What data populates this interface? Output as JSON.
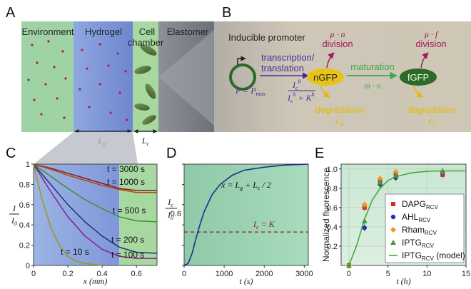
{
  "panel_a": {
    "letter": "A",
    "labels": {
      "environment": "Environment",
      "hydrogel": "Hydrogel",
      "cell": "Cell",
      "chamber": "chamber",
      "elastomer": "Elastomer"
    },
    "dim_lg": "L",
    "dim_lg_sub": "g",
    "dim_lc": "L",
    "dim_lc_sub": "c"
  },
  "panel_b": {
    "letter": "B",
    "inducible_promoter": "Inducible promoter",
    "transcription": "transcription/",
    "translation": "translation",
    "nGFP": "nGFP",
    "fGFP": "fGFP",
    "maturation": "maturation",
    "maturation_rate": "m · n",
    "division_n_rate": "μ · n",
    "division_f_rate": "μ · f",
    "division": "division",
    "degradation": "degradation",
    "deg_n": "C",
    "deg_n_sub": "n",
    "deg_f": "C",
    "deg_f_sub": "f",
    "eq_lhs": "P = P",
    "eq_lhs_sub": "max",
    "eq_num": "I",
    "eq_num_sub": "c",
    "eq_num_sup": "h",
    "eq_den": "I",
    "eq_den_sub": "c",
    "eq_den_sup": "h",
    "eq_den_tail": " + K",
    "eq_den_tail_sup": "h"
  },
  "chart_data": [
    {
      "panel": "C",
      "type": "line",
      "xlabel": "x (mm)",
      "ylabel": "I / I0",
      "xlim": [
        0,
        0.72
      ],
      "ylim": [
        0,
        1.0
      ],
      "xticks": [
        0,
        0.2,
        0.4,
        0.6
      ],
      "yticks": [
        0,
        0.2,
        0.4,
        0.6,
        0.8,
        1
      ],
      "series": [
        {
          "name": "t = 3000 s",
          "color": "#8b1a1a",
          "x": [
            0,
            0.1,
            0.2,
            0.3,
            0.4,
            0.5,
            0.6,
            0.72
          ],
          "y": [
            1,
            0.96,
            0.91,
            0.86,
            0.81,
            0.76,
            0.74,
            0.74
          ]
        },
        {
          "name": "t = 1000 s",
          "color": "#b04a12",
          "x": [
            0,
            0.1,
            0.2,
            0.3,
            0.4,
            0.5,
            0.6,
            0.72
          ],
          "y": [
            1,
            0.95,
            0.89,
            0.84,
            0.79,
            0.75,
            0.72,
            0.72
          ]
        },
        {
          "name": "t = 500 s",
          "color": "#3f8f2e",
          "x": [
            0,
            0.1,
            0.2,
            0.3,
            0.4,
            0.5,
            0.6,
            0.72
          ],
          "y": [
            1,
            0.88,
            0.76,
            0.65,
            0.56,
            0.48,
            0.44,
            0.43
          ]
        },
        {
          "name": "t = 200 s",
          "color": "#23307a",
          "x": [
            0,
            0.1,
            0.2,
            0.3,
            0.4,
            0.5,
            0.6,
            0.72
          ],
          "y": [
            1,
            0.8,
            0.6,
            0.43,
            0.29,
            0.18,
            0.13,
            0.12
          ]
        },
        {
          "name": "t = 100 s",
          "color": "#8a1f8a",
          "x": [
            0,
            0.1,
            0.2,
            0.3,
            0.4,
            0.5,
            0.6,
            0.72
          ],
          "y": [
            1,
            0.73,
            0.48,
            0.29,
            0.16,
            0.09,
            0.07,
            0.07
          ]
        },
        {
          "name": "t = 10 s",
          "color": "#9a9a14",
          "x": [
            0,
            0.05,
            0.1,
            0.15,
            0.2,
            0.25,
            0.3,
            0.35,
            0.4
          ],
          "y": [
            1,
            0.65,
            0.38,
            0.2,
            0.09,
            0.04,
            0.02,
            0.01,
            0
          ]
        }
      ]
    },
    {
      "panel": "D",
      "type": "line",
      "xlabel": "t (s)",
      "ylabel": "Ic / I0",
      "xlim": [
        0,
        3100
      ],
      "ylim": [
        0,
        1.0
      ],
      "xticks": [
        0,
        1000,
        2000,
        3000
      ],
      "yticks": [
        0,
        0.2,
        0.4,
        0.6,
        0.8,
        1
      ],
      "annotation": "x = Lg + Lc / 2",
      "threshold_label": "Ic = K",
      "threshold": 0.33,
      "series": [
        {
          "name": "x = Lg + Lc / 2",
          "color": "#1e2f8a",
          "x": [
            0,
            100,
            200,
            300,
            400,
            500,
            700,
            900,
            1200,
            1500,
            2000,
            2500,
            3100
          ],
          "y": [
            0,
            0.02,
            0.12,
            0.27,
            0.41,
            0.53,
            0.7,
            0.8,
            0.89,
            0.94,
            0.97,
            0.99,
            1.0
          ]
        }
      ]
    },
    {
      "panel": "E",
      "type": "scatter",
      "xlabel": "t (h)",
      "ylabel": "Normalized fluorescence",
      "xlim": [
        -1,
        15
      ],
      "ylim": [
        0,
        1.05
      ],
      "xticks": [
        0,
        5,
        10,
        15
      ],
      "yticks": [
        0.2,
        0.4,
        0.6,
        0.8,
        1.0
      ],
      "series": [
        {
          "name": "DAPG",
          "sub": "RCV",
          "color": "#d42a2a",
          "marker": "square",
          "x": [
            0,
            2,
            4,
            6,
            12
          ],
          "y": [
            0,
            0.6,
            0.88,
            0.95,
            0.94
          ]
        },
        {
          "name": "AHL",
          "sub": "RCV",
          "color": "#2230b8",
          "marker": "circle",
          "x": [
            0,
            2,
            4,
            6,
            12
          ],
          "y": [
            0,
            0.39,
            0.84,
            0.91,
            0.96
          ]
        },
        {
          "name": "Rham",
          "sub": "RCV",
          "color": "#f09a1e",
          "marker": "diamond",
          "x": [
            0,
            2,
            4,
            6,
            12
          ],
          "y": [
            0,
            0.63,
            0.9,
            0.97,
            0.97
          ]
        },
        {
          "name": "IPTG",
          "sub": "RCV",
          "color": "#3f9a3a",
          "marker": "triangle",
          "x": [
            0,
            2,
            4,
            6,
            12
          ],
          "y": [
            0,
            0.46,
            0.86,
            0.93,
            0.98
          ]
        }
      ],
      "model": {
        "name": "IPTG",
        "sub": "RCV",
        "suffix": " (model)",
        "color": "#4aa83a",
        "x": [
          0,
          1,
          2,
          3,
          4,
          5,
          6,
          8,
          10,
          12,
          15
        ],
        "y": [
          0,
          0.21,
          0.48,
          0.68,
          0.8,
          0.88,
          0.92,
          0.96,
          0.975,
          0.98,
          0.98
        ]
      }
    }
  ]
}
